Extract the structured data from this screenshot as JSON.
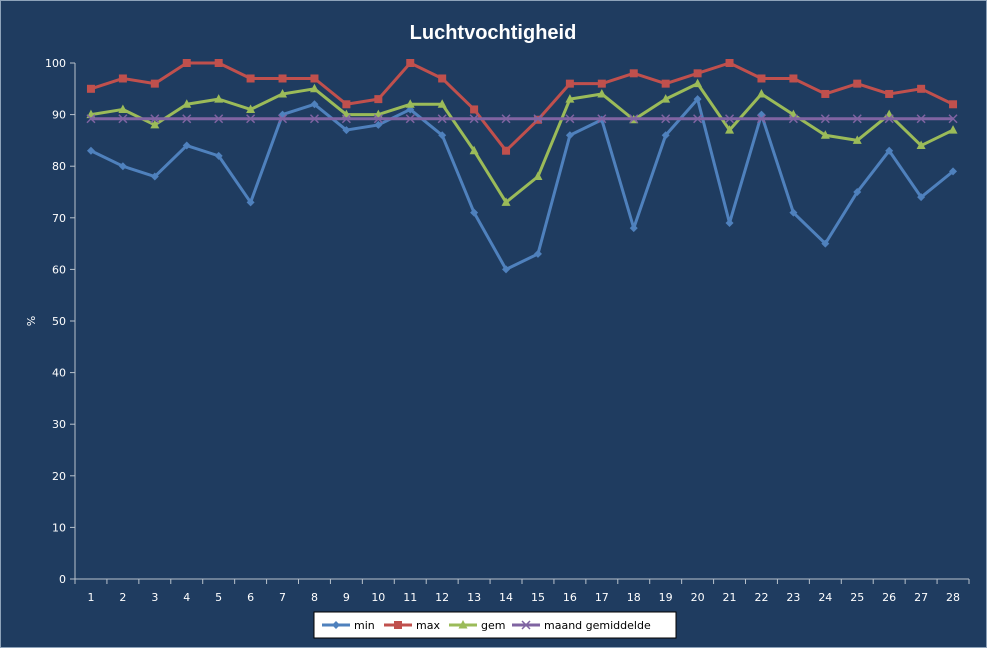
{
  "chart_data": {
    "type": "line",
    "title": "Luchtvochtigheid",
    "xlabel": "",
    "ylabel": "%",
    "ylim": [
      0,
      100
    ],
    "yticks": [
      0,
      10,
      20,
      30,
      40,
      50,
      60,
      70,
      80,
      90,
      100
    ],
    "categories": [
      "1",
      "2",
      "3",
      "4",
      "5",
      "6",
      "7",
      "8",
      "9",
      "10",
      "11",
      "12",
      "13",
      "14",
      "15",
      "16",
      "17",
      "18",
      "19",
      "20",
      "21",
      "22",
      "23",
      "24",
      "25",
      "26",
      "27",
      "28"
    ],
    "grid": false,
    "legend_position": "bottom",
    "series": [
      {
        "name": "min",
        "color": "#4f81bd",
        "marker": "diamond",
        "values": [
          83,
          80,
          78,
          84,
          82,
          73,
          90,
          92,
          87,
          88,
          91,
          86,
          71,
          60,
          63,
          86,
          89,
          68,
          86,
          93,
          69,
          90,
          71,
          65,
          75,
          83,
          74,
          79
        ]
      },
      {
        "name": "max",
        "color": "#c0504d",
        "marker": "square",
        "values": [
          95,
          97,
          96,
          100,
          100,
          97,
          97,
          97,
          92,
          93,
          100,
          97,
          91,
          83,
          89,
          96,
          96,
          98,
          96,
          98,
          100,
          97,
          97,
          94,
          96,
          94,
          95,
          92
        ]
      },
      {
        "name": "gem",
        "color": "#9bbb59",
        "marker": "triangle",
        "values": [
          90,
          91,
          88,
          92,
          93,
          91,
          94,
          95,
          90,
          90,
          92,
          92,
          83,
          73,
          78,
          93,
          94,
          89,
          93,
          96,
          87,
          94,
          90,
          86,
          85,
          90,
          84,
          87
        ]
      },
      {
        "name": "maand gemiddelde",
        "color": "#8064a2",
        "marker": "x",
        "values": [
          89.2,
          89.2,
          89.2,
          89.2,
          89.2,
          89.2,
          89.2,
          89.2,
          89.2,
          89.2,
          89.2,
          89.2,
          89.2,
          89.2,
          89.2,
          89.2,
          89.2,
          89.2,
          89.2,
          89.2,
          89.2,
          89.2,
          89.2,
          89.2,
          89.2,
          89.2,
          89.2,
          89.2
        ]
      }
    ]
  }
}
